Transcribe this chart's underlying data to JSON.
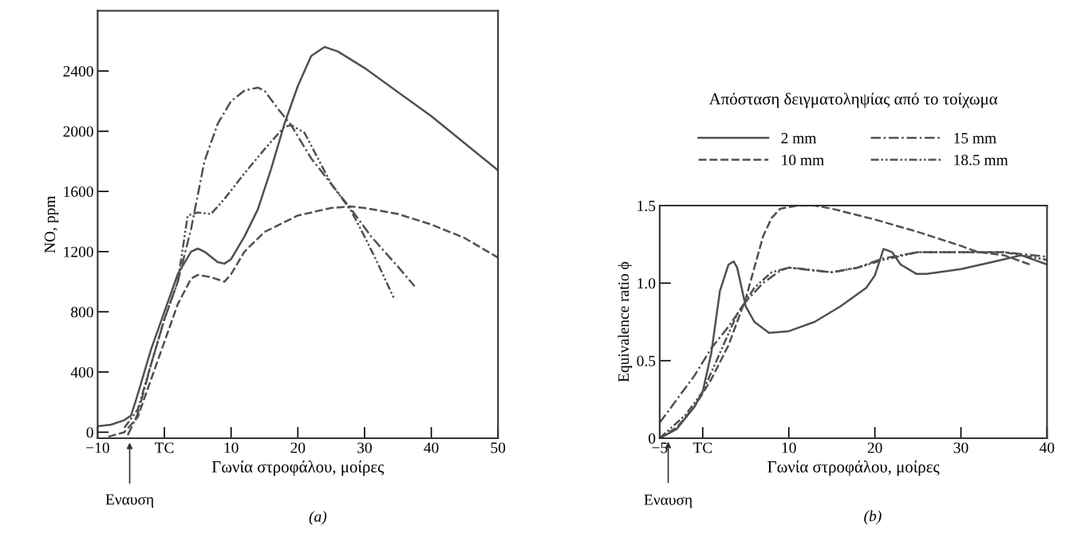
{
  "chart_data": [
    {
      "type": "line",
      "ylabel": "NO, ppm",
      "xlabel": "Γωνία στροφάλου, μοίρες",
      "xlim": [
        -10,
        50
      ],
      "ylim": [
        -40,
        2800
      ],
      "xticks": [
        {
          "value": -10,
          "label": "−10"
        },
        {
          "value": 0,
          "label": "TC"
        },
        10,
        20,
        30,
        40,
        50
      ],
      "yticks": [
        0,
        400,
        800,
        1200,
        1600,
        2000,
        2400
      ],
      "grid": false,
      "annotations": [
        "Εναυση",
        "(a)"
      ],
      "series": [
        {
          "color": "#505050",
          "line_style": "solid",
          "x": [
            -10,
            -8,
            -6,
            -5,
            -4,
            -2,
            0,
            2,
            4,
            5,
            6,
            8,
            9,
            10,
            12,
            14,
            16,
            18,
            20,
            22,
            24,
            26,
            30,
            40,
            50
          ],
          "values": [
            40,
            50,
            80,
            110,
            250,
            550,
            800,
            1050,
            1200,
            1220,
            1200,
            1130,
            1120,
            1150,
            1300,
            1480,
            1750,
            2050,
            2300,
            2500,
            2560,
            2530,
            2420,
            2100,
            1740
          ]
        },
        {
          "color": "#505050",
          "line_style": "dashed",
          "x": [
            -8.4,
            -6,
            -4,
            -2,
            0,
            2,
            4,
            5,
            7,
            9,
            10,
            12,
            15,
            20,
            25,
            28,
            30,
            35,
            40,
            45,
            50
          ],
          "values": [
            -30,
            0,
            100,
            350,
            600,
            850,
            1020,
            1045,
            1030,
            1000,
            1050,
            1200,
            1330,
            1440,
            1490,
            1500,
            1490,
            1450,
            1380,
            1290,
            1160
          ]
        },
        {
          "color": "#505050",
          "line_style": "dashdot",
          "x": [
            -5.5,
            -4,
            -2,
            0,
            2,
            4,
            6,
            8,
            10,
            12,
            14,
            15,
            17,
            19,
            22,
            25,
            28,
            31,
            35,
            37.5
          ],
          "values": [
            -20,
            120,
            450,
            750,
            1000,
            1350,
            1800,
            2050,
            2200,
            2270,
            2290,
            2270,
            2150,
            2040,
            1820,
            1650,
            1480,
            1300,
            1100,
            970
          ]
        },
        {
          "color": "#505050",
          "line_style": "dashdotdot",
          "x": [
            -6,
            -4,
            -2,
            0,
            2,
            3.5,
            5,
            7,
            9,
            12,
            15,
            18,
            19,
            21,
            23,
            25,
            28,
            30,
            32,
            34.5
          ],
          "values": [
            30,
            150,
            450,
            750,
            1000,
            1440,
            1460,
            1450,
            1550,
            1720,
            1880,
            2030,
            2040,
            1990,
            1820,
            1650,
            1470,
            1300,
            1120,
            880
          ]
        }
      ]
    },
    {
      "type": "line",
      "ylabel": "Equivalence ratio ϕ",
      "xlabel": "Γωνία στροφάλου, μοίρες",
      "xlim": [
        -5,
        40
      ],
      "ylim": [
        0,
        1.5
      ],
      "xticks": [
        {
          "value": -5,
          "label": "−5"
        },
        {
          "value": 0,
          "label": "TC"
        },
        10,
        20,
        30,
        40
      ],
      "yticks": [
        0,
        0.5,
        {
          "value": 1,
          "label": "1.0"
        },
        1.5
      ],
      "grid": false,
      "legend": "top",
      "legend_title": "Απόσταση δειγματοληψίας από το τοίχωμα",
      "annotations": [
        "Εναυση",
        "(b)"
      ],
      "series": [
        {
          "name": "2 mm",
          "color": "#505050",
          "line_style": "solid",
          "x": [
            -5,
            -3,
            -1,
            0,
            1,
            2,
            3,
            3.6,
            4,
            5,
            6,
            7.7,
            10,
            13,
            16,
            19,
            20,
            21,
            22,
            23,
            24.8,
            26,
            30,
            34,
            37,
            40
          ],
          "values": [
            0,
            0.06,
            0.2,
            0.3,
            0.55,
            0.95,
            1.12,
            1.14,
            1.1,
            0.85,
            0.75,
            0.68,
            0.69,
            0.75,
            0.85,
            0.97,
            1.05,
            1.22,
            1.2,
            1.12,
            1.06,
            1.06,
            1.09,
            1.14,
            1.18,
            1.12
          ]
        },
        {
          "name": "10 mm",
          "color": "#505050",
          "line_style": "dashed",
          "x": [
            -5,
            -3,
            -1,
            1,
            3,
            5,
            6,
            7,
            8,
            9,
            11,
            13,
            15,
            20,
            25,
            30,
            32,
            35,
            38
          ],
          "values": [
            0,
            0.07,
            0.2,
            0.38,
            0.6,
            0.9,
            1.1,
            1.3,
            1.42,
            1.48,
            1.5,
            1.5,
            1.48,
            1.41,
            1.33,
            1.24,
            1.2,
            1.18,
            1.12
          ]
        },
        {
          "name": "15 mm",
          "color": "#505050",
          "line_style": "dashdot",
          "x": [
            -5,
            -3,
            -1,
            1,
            3,
            5,
            7,
            9,
            10,
            13,
            15,
            18,
            21,
            25,
            30,
            35,
            40
          ],
          "values": [
            0.1,
            0.25,
            0.4,
            0.58,
            0.72,
            0.88,
            1.0,
            1.08,
            1.1,
            1.08,
            1.07,
            1.1,
            1.16,
            1.2,
            1.2,
            1.2,
            1.17
          ]
        },
        {
          "name": "18.5 mm",
          "color": "#505050",
          "line_style": "dashdotdot",
          "x": [
            -5,
            -2,
            0,
            2,
            4,
            6,
            8,
            10,
            12,
            15,
            18,
            21,
            25,
            30,
            35,
            40
          ],
          "values": [
            0,
            0.15,
            0.3,
            0.55,
            0.8,
            0.97,
            1.07,
            1.1,
            1.09,
            1.07,
            1.1,
            1.15,
            1.2,
            1.2,
            1.2,
            1.15
          ]
        }
      ]
    }
  ]
}
